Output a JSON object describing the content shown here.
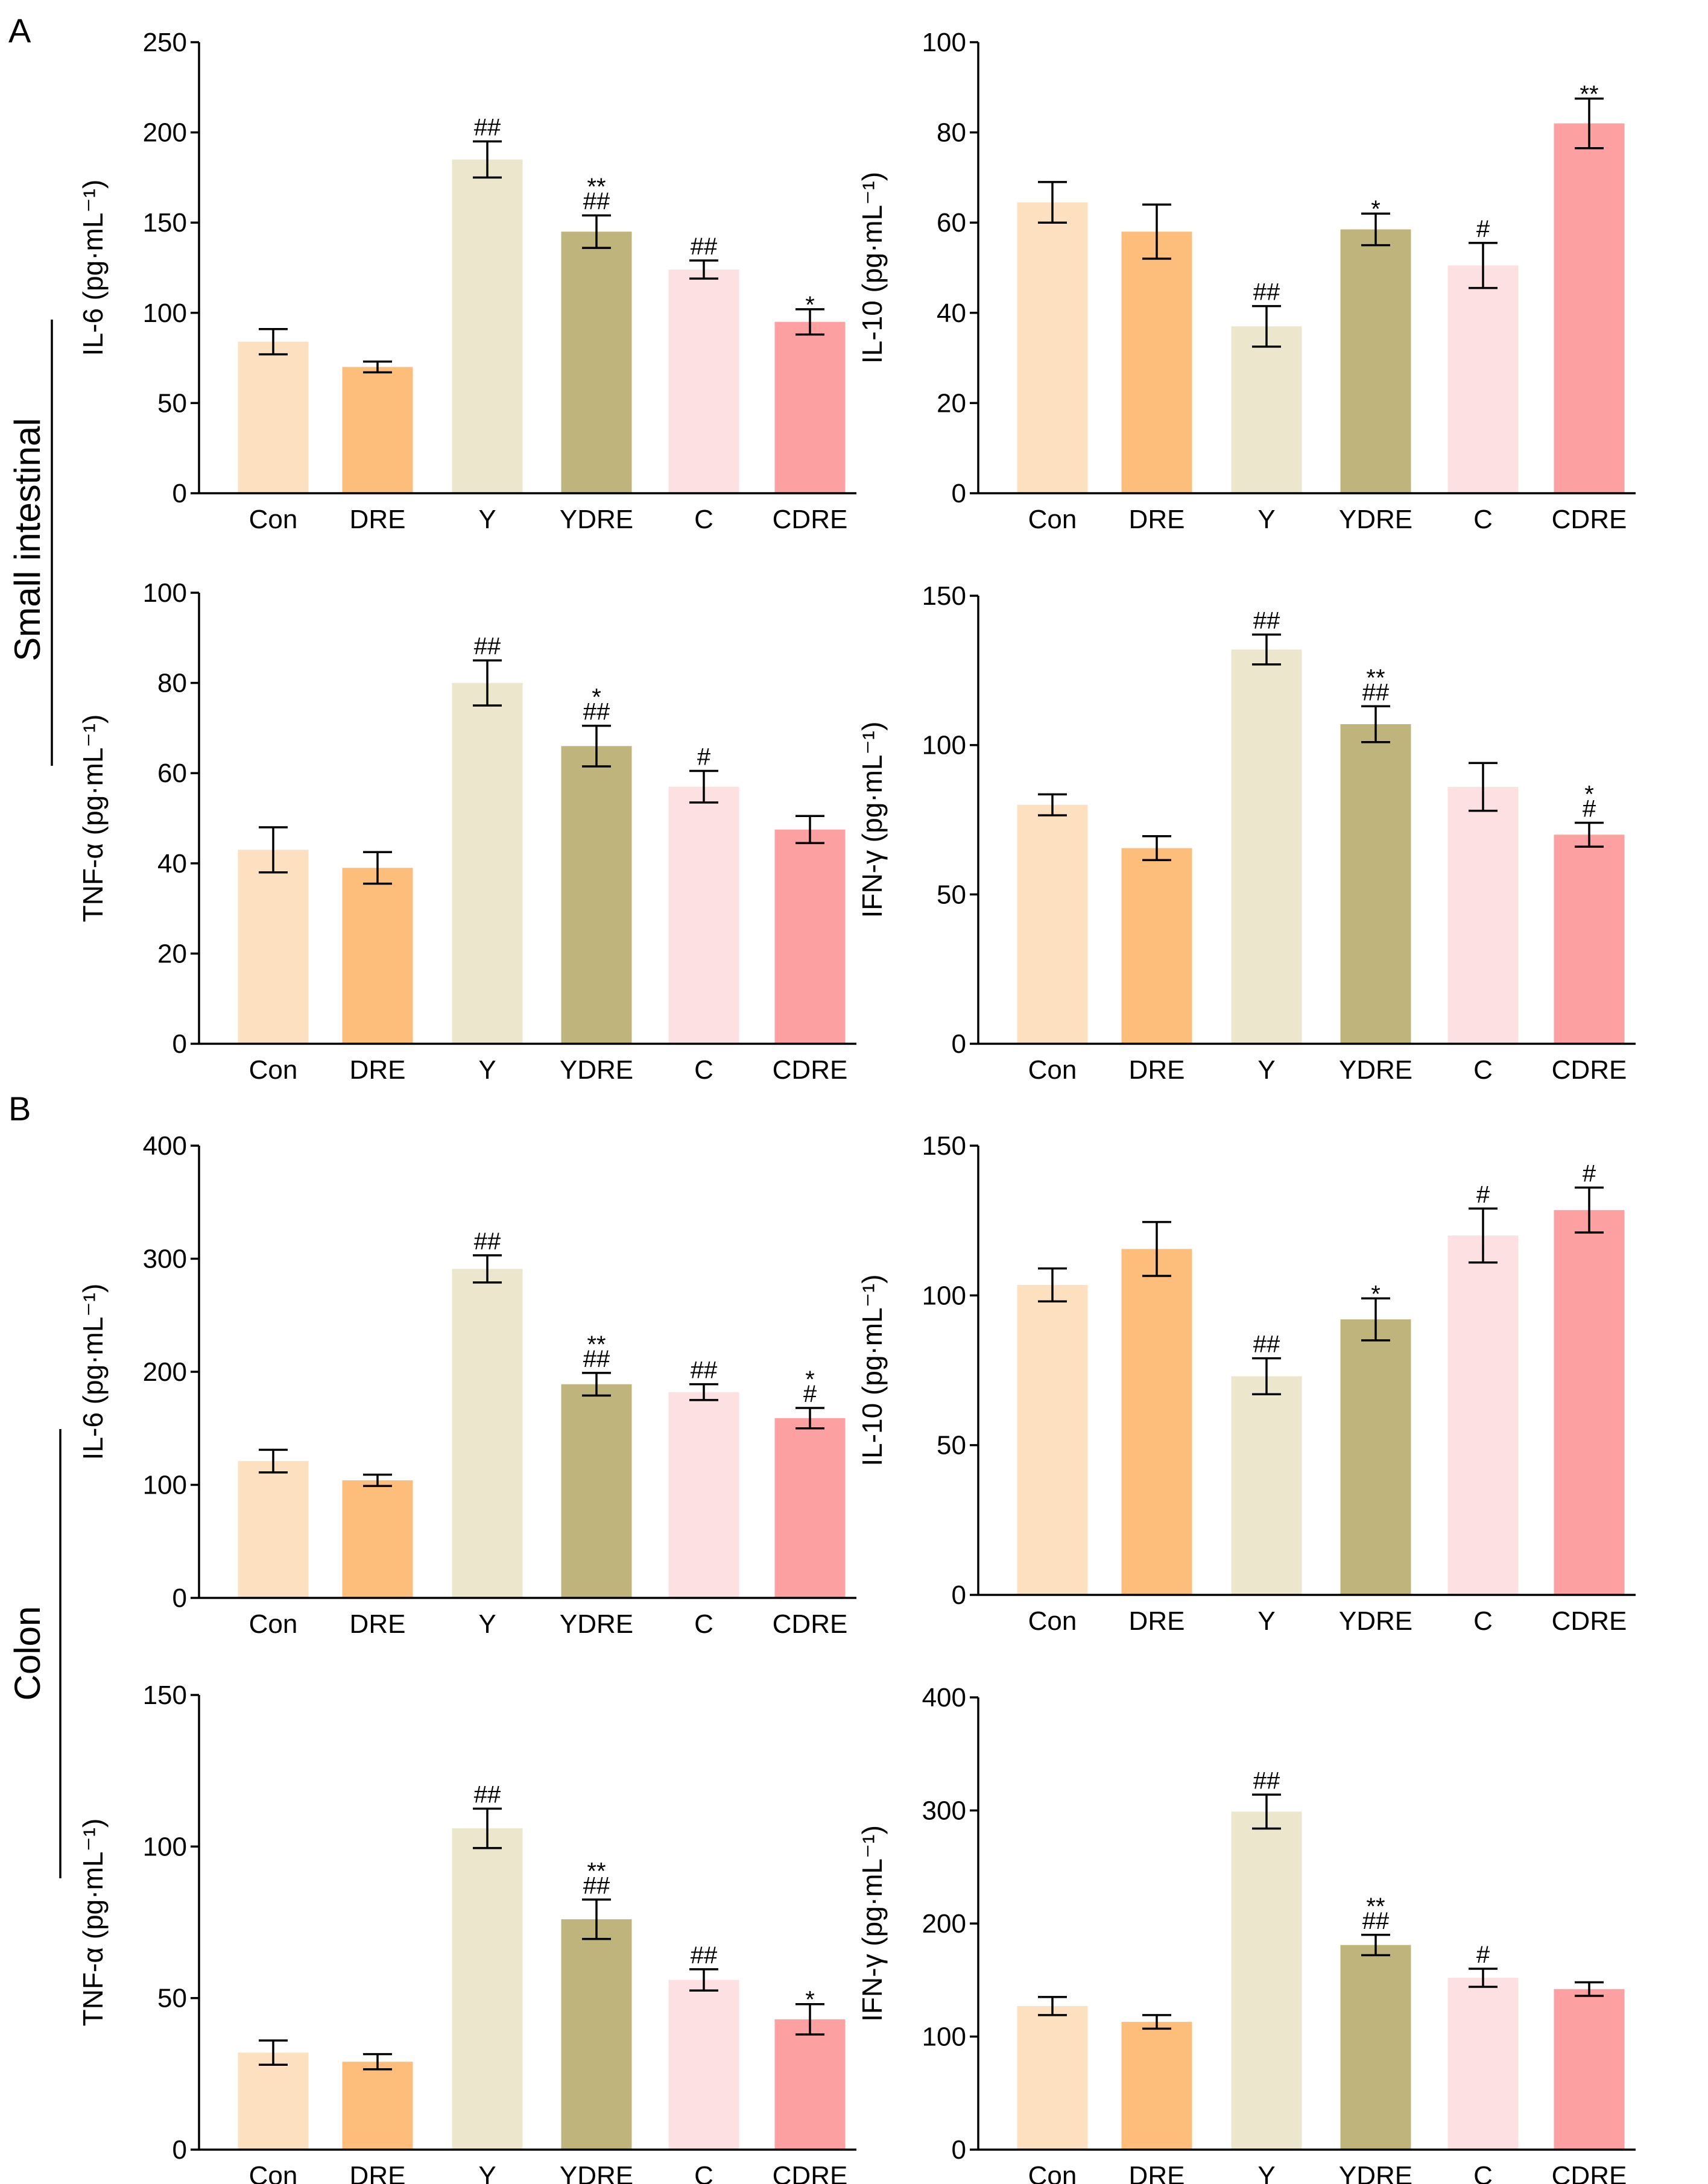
{
  "panels": {
    "a_letter": "A",
    "b_letter": "B",
    "a_label": "Small intestinal",
    "b_label": "Colon"
  },
  "colors": {
    "Con": "#fde0c0",
    "DRE": "#fdbe7c",
    "Y": "#ebe6cc",
    "YDRE": "#bfb57c",
    "C": "#fde0e2",
    "CDRE": "#fca0a1"
  },
  "chart_data": [
    {
      "id": "si-il6",
      "panel": "A",
      "type": "bar",
      "ylabel": "IL-6 (pg·mL⁻¹)",
      "categories": [
        "Con",
        "DRE",
        "Y",
        "YDRE",
        "C",
        "CDRE"
      ],
      "ylim": [
        0,
        250
      ],
      "yticks": [
        "0",
        "50",
        "100",
        "150",
        "200",
        "250"
      ],
      "values": [
        84,
        70,
        185,
        145,
        124,
        95
      ],
      "errors": [
        7,
        3,
        10,
        9,
        5,
        7
      ],
      "annotations": [
        "",
        "",
        "##",
        "**\n##",
        "##",
        "*"
      ]
    },
    {
      "id": "si-il10",
      "panel": "A",
      "type": "bar",
      "ylabel": "IL-10 (pg·mL⁻¹)",
      "categories": [
        "Con",
        "DRE",
        "Y",
        "YDRE",
        "C",
        "CDRE"
      ],
      "ylim": [
        0,
        100
      ],
      "yticks": [
        "0",
        "20",
        "40",
        "60",
        "80",
        "100"
      ],
      "values": [
        64.5,
        58,
        37,
        58.5,
        50.5,
        82
      ],
      "errors": [
        4.5,
        6,
        4.5,
        3.5,
        5,
        5.5
      ],
      "annotations": [
        "",
        "",
        "##",
        "*",
        "#",
        "**"
      ]
    },
    {
      "id": "si-tnfa",
      "panel": "A",
      "type": "bar",
      "ylabel": "TNF-α (pg·mL⁻¹)",
      "categories": [
        "Con",
        "DRE",
        "Y",
        "YDRE",
        "C",
        "CDRE"
      ],
      "ylim": [
        0,
        100
      ],
      "yticks": [
        "0",
        "20",
        "40",
        "60",
        "80",
        "100"
      ],
      "values": [
        43,
        39,
        80,
        66,
        57,
        47.5
      ],
      "errors": [
        5,
        3.5,
        5,
        4.5,
        3.5,
        3
      ],
      "annotations": [
        "",
        "",
        "##",
        "*\n##",
        "#",
        ""
      ]
    },
    {
      "id": "si-ifng",
      "panel": "A",
      "type": "bar",
      "ylabel": "IFN-γ (pg·mL⁻¹)",
      "categories": [
        "Con",
        "DRE",
        "Y",
        "YDRE",
        "C",
        "CDRE"
      ],
      "ylim": [
        0,
        150
      ],
      "yticks": [
        "0",
        "50",
        "100",
        "150"
      ],
      "values": [
        80,
        65.5,
        132,
        107,
        86,
        70
      ],
      "errors": [
        3.5,
        4,
        5,
        6,
        8,
        4
      ],
      "annotations": [
        "",
        "",
        "##",
        "**\n##",
        "",
        "*\n#"
      ]
    },
    {
      "id": "colon-il6",
      "panel": "B",
      "type": "bar",
      "ylabel": "IL-6 (pg·mL⁻¹)",
      "categories": [
        "Con",
        "DRE",
        "Y",
        "YDRE",
        "C",
        "CDRE"
      ],
      "ylim": [
        0,
        400
      ],
      "yticks": [
        "0",
        "100",
        "200",
        "300",
        "400"
      ],
      "values": [
        121,
        104,
        291,
        189,
        182,
        159
      ],
      "errors": [
        10,
        5,
        12,
        10,
        7,
        9
      ],
      "annotations": [
        "",
        "",
        "##",
        "**\n##",
        "##",
        "*\n#"
      ]
    },
    {
      "id": "colon-il10",
      "panel": "B",
      "type": "bar",
      "ylabel": "IL-10 (pg·mL⁻¹)",
      "categories": [
        "Con",
        "DRE",
        "Y",
        "YDRE",
        "C",
        "CDRE"
      ],
      "ylim": [
        0,
        150
      ],
      "yticks": [
        "0",
        "50",
        "100",
        "150"
      ],
      "values": [
        103.5,
        115.5,
        73,
        92,
        120,
        128.5
      ],
      "errors": [
        5.5,
        9,
        6,
        7,
        9,
        7.5
      ],
      "annotations": [
        "",
        "",
        "##",
        "*",
        "#",
        "#"
      ]
    },
    {
      "id": "colon-tnfa",
      "panel": "B",
      "type": "bar",
      "ylabel": "TNF-α (pg·mL⁻¹)",
      "categories": [
        "Con",
        "DRE",
        "Y",
        "YDRE",
        "C",
        "CDRE"
      ],
      "ylim": [
        0,
        150
      ],
      "yticks": [
        "0",
        "50",
        "100",
        "150"
      ],
      "values": [
        32,
        29,
        106,
        76,
        56,
        43
      ],
      "errors": [
        4,
        2.5,
        6.5,
        6.5,
        3.5,
        5
      ],
      "annotations": [
        "",
        "",
        "##",
        "**\n##",
        "##",
        "*"
      ]
    },
    {
      "id": "colon-ifng",
      "panel": "B",
      "type": "bar",
      "ylabel": "IFN-γ (pg·mL⁻¹)",
      "categories": [
        "Con",
        "DRE",
        "Y",
        "YDRE",
        "C",
        "CDRE"
      ],
      "ylim": [
        0,
        400
      ],
      "yticks": [
        "0",
        "100",
        "200",
        "300",
        "400"
      ],
      "values": [
        127,
        113,
        299,
        181,
        152,
        142
      ],
      "errors": [
        8,
        6,
        15,
        9,
        8,
        6
      ],
      "annotations": [
        "",
        "",
        "##",
        "**\n##",
        "#",
        ""
      ]
    }
  ]
}
